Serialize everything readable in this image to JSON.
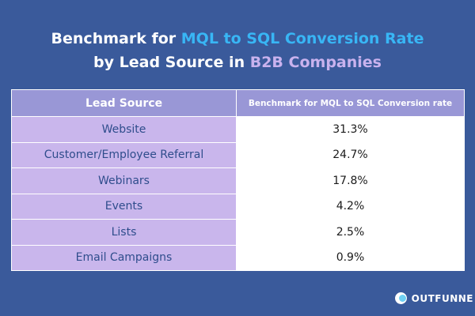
{
  "title": {
    "line1_prefix": "Benchmark for ",
    "line1_highlight": "MQL to SQL Conversion Rate",
    "line2_prefix": "by Lead Source in ",
    "line2_highlight": "B2B Companies"
  },
  "chart_data": {
    "type": "table",
    "columns": [
      "Lead Source",
      "Benchmark for MQL to SQL Conversion rate"
    ],
    "rows": [
      [
        "Website",
        "31.3%"
      ],
      [
        "Customer/Employee Referral",
        "24.7%"
      ],
      [
        "Webinars",
        "17.8%"
      ],
      [
        "Events",
        "4.2%"
      ],
      [
        "Lists",
        "2.5%"
      ],
      [
        "Email Campaigns",
        "0.9%"
      ]
    ]
  },
  "brand": {
    "name": "OUTFUNNE"
  },
  "colors": {
    "background": "#3a5a9b",
    "header": "#9997d6",
    "source_cell": "#c9b6ec",
    "highlight_blue": "#38b6f5",
    "highlight_lilac": "#c9b2ee"
  }
}
